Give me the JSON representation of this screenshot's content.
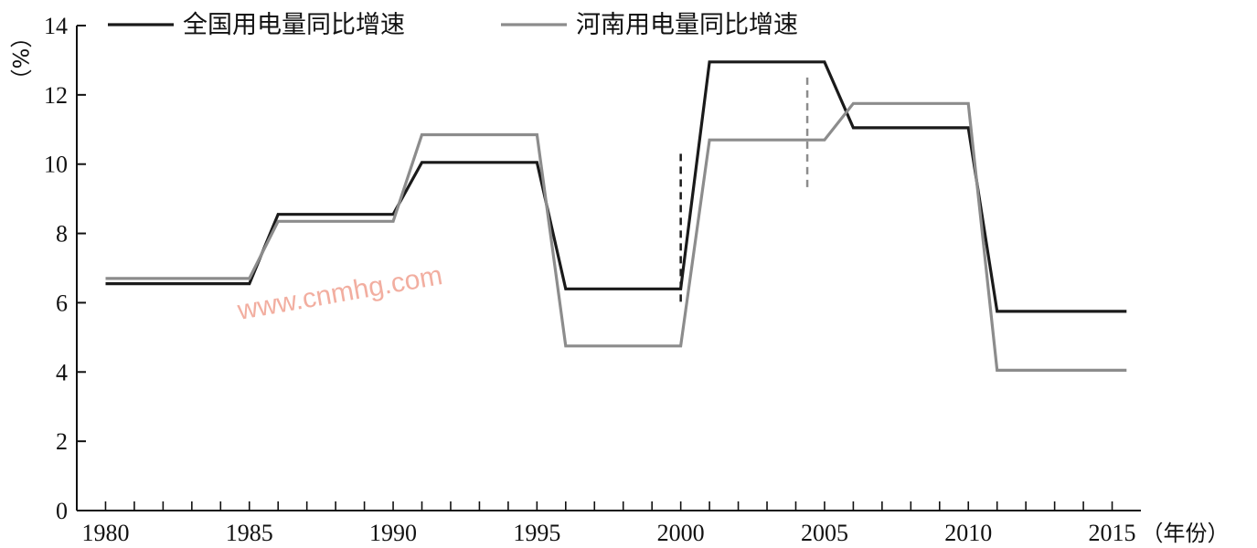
{
  "chart_data": {
    "type": "line",
    "xlabel": "（年份）",
    "ylabel": "（%）",
    "xlim": [
      1979,
      2016
    ],
    "ylim": [
      0,
      14
    ],
    "x_ticks": [
      1980,
      1985,
      1990,
      1995,
      2000,
      2005,
      2010,
      2015
    ],
    "y_ticks": [
      0,
      2,
      4,
      6,
      8,
      10,
      12,
      14
    ],
    "legend_position": "top",
    "grid": false,
    "series": [
      {
        "name": "全国用电量同比增速",
        "color": "#1a1a1a",
        "x": [
          1980,
          1985,
          1986,
          1990,
          1991,
          1995,
          1996,
          2000,
          2001,
          2005,
          2006,
          2010,
          2011,
          2015.5
        ],
        "y": [
          6.55,
          6.55,
          8.55,
          8.55,
          10.05,
          10.05,
          6.4,
          6.4,
          12.95,
          12.95,
          11.05,
          11.05,
          5.75,
          5.75
        ]
      },
      {
        "name": "河南用电量同比增速",
        "color": "#8c8c8c",
        "x": [
          1980,
          1985,
          1986,
          1990,
          1991,
          1995,
          1996,
          2000,
          2001,
          2005,
          2006,
          2010,
          2011,
          2015.5
        ],
        "y": [
          6.7,
          6.7,
          8.35,
          8.35,
          10.85,
          10.85,
          4.75,
          4.75,
          10.7,
          10.7,
          11.75,
          11.75,
          4.05,
          4.05
        ]
      }
    ],
    "reference_lines": [
      {
        "x": 2000,
        "y_range": [
          5.9,
          10.3
        ],
        "color": "#1a1a1a"
      },
      {
        "x": 2004.4,
        "y_range": [
          9.2,
          12.5
        ],
        "color": "#8c8c8c"
      }
    ]
  },
  "watermark": "www.cnmhg.com"
}
